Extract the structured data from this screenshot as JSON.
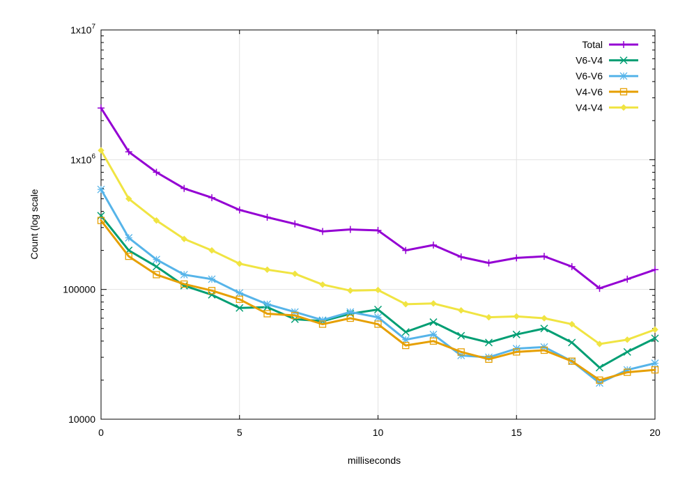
{
  "chart_data": {
    "type": "line",
    "title": "",
    "xlabel": "milliseconds",
    "ylabel": "Count (log scale",
    "xlim": [
      0,
      20
    ],
    "ylim": [
      10000,
      10000000
    ],
    "yscale": "log",
    "grid": true,
    "legend_position": "top-right",
    "x_ticks": [
      0,
      5,
      10,
      15,
      20
    ],
    "y_ticks": [
      {
        "value": 10000,
        "label": "10000"
      },
      {
        "value": 100000,
        "label": "100000"
      },
      {
        "value": 1000000,
        "label": "1x10",
        "sup": "6"
      },
      {
        "value": 10000000,
        "label": "1x10",
        "sup": "7"
      }
    ],
    "x": [
      0,
      1,
      2,
      3,
      4,
      5,
      6,
      7,
      8,
      9,
      10,
      11,
      12,
      13,
      14,
      15,
      16,
      17,
      18,
      19,
      20
    ],
    "series": [
      {
        "name": "Total",
        "color": "#9400d3",
        "marker": "plus",
        "values": [
          2500000,
          1150000,
          800000,
          600000,
          510000,
          410000,
          360000,
          320000,
          280000,
          290000,
          285000,
          200000,
          220000,
          178000,
          160000,
          175000,
          180000,
          150000,
          102000,
          120000,
          142000
        ]
      },
      {
        "name": "V6-V4",
        "color": "#009e73",
        "marker": "cross",
        "values": [
          370000,
          200000,
          150000,
          107000,
          91000,
          72000,
          73000,
          59000,
          57000,
          65000,
          70000,
          47000,
          56000,
          44000,
          39000,
          45000,
          50000,
          39000,
          25000,
          33000,
          42000
        ]
      },
      {
        "name": "V6-V6",
        "color": "#56b4e9",
        "marker": "star",
        "values": [
          590000,
          250000,
          170000,
          130000,
          120000,
          94000,
          77000,
          67000,
          58000,
          67000,
          61000,
          41000,
          45000,
          31000,
          30000,
          35000,
          36000,
          28000,
          19000,
          24000,
          27000
        ]
      },
      {
        "name": "V4-V6",
        "color": "#e69f00",
        "marker": "square",
        "values": [
          340000,
          180000,
          130000,
          110000,
          98000,
          84000,
          65000,
          63000,
          54000,
          60000,
          54000,
          37000,
          40000,
          33000,
          29000,
          33000,
          34000,
          28000,
          20000,
          23000,
          24000
        ]
      },
      {
        "name": "V4-V4",
        "color": "#f0e442",
        "marker": "diamond",
        "values": [
          1180000,
          500000,
          340000,
          245000,
          200000,
          158000,
          142000,
          132000,
          109000,
          98000,
          99000,
          77000,
          78000,
          69000,
          61000,
          62000,
          60000,
          54000,
          38000,
          41000,
          49000
        ]
      }
    ]
  }
}
